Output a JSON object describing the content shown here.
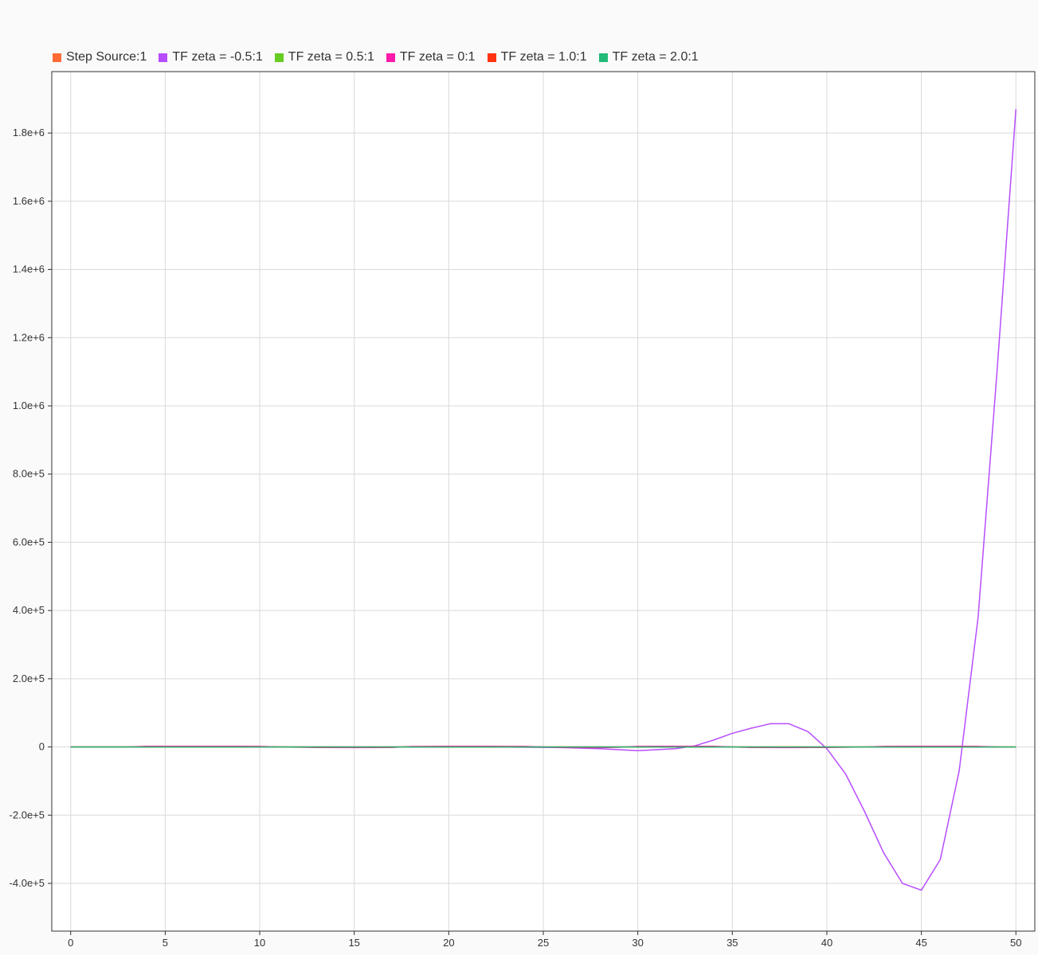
{
  "chart_data": {
    "type": "line",
    "xlim": [
      -1,
      51
    ],
    "ylim": [
      -540000,
      1980000
    ],
    "x_ticks": [
      0,
      5,
      10,
      15,
      20,
      25,
      30,
      35,
      40,
      45,
      50
    ],
    "x_tick_labels": [
      "0",
      "5",
      "10",
      "15",
      "20",
      "25",
      "30",
      "35",
      "40",
      "45",
      "50"
    ],
    "y_ticks": [
      -400000,
      -200000,
      0,
      200000,
      400000,
      600000,
      800000,
      1000000,
      1200000,
      1400000,
      1600000,
      1800000
    ],
    "y_tick_labels": [
      "-4.0e+5",
      "-2.0e+5",
      "0",
      "2.0e+5",
      "4.0e+5",
      "6.0e+5",
      "8.0e+5",
      "1.0e+6",
      "1.2e+6",
      "1.4e+6",
      "1.6e+6",
      "1.8e+6"
    ],
    "grid": true,
    "legend_position": "top-left",
    "series": [
      {
        "name": "Step Source:1",
        "color": "#ff6b35",
        "x": [
          0,
          1,
          50
        ],
        "y": [
          0,
          1,
          1
        ]
      },
      {
        "name": "TF zeta = -0.5:1",
        "color": "#b84dff",
        "x": [
          0,
          4,
          10,
          14,
          18,
          22,
          26,
          28,
          30,
          32,
          33,
          34,
          35,
          36,
          37,
          38,
          39,
          40,
          41,
          42,
          43,
          44,
          45,
          46,
          47,
          48,
          49,
          50
        ],
        "y": [
          0,
          0,
          0,
          0,
          0,
          0,
          -2000,
          -5000,
          -11000,
          -5000,
          3000,
          20000,
          40000,
          55000,
          68000,
          68000,
          45000,
          -5000,
          -80000,
          -190000,
          -310000,
          -400000,
          -420000,
          -330000,
          -70000,
          380000,
          1100000,
          1870000
        ]
      },
      {
        "name": "TF zeta = 0.5:1",
        "color": "#66cc22",
        "x": [
          0,
          5,
          10,
          20,
          30,
          40,
          50
        ],
        "y": [
          0,
          1,
          1,
          1,
          1,
          1,
          1
        ]
      },
      {
        "name": "TF zeta = 0:1",
        "color": "#ff1aaa",
        "x": [
          0,
          3,
          4,
          5,
          7,
          9,
          10,
          11,
          13,
          15,
          17,
          18,
          20,
          22,
          24,
          25,
          26,
          28,
          29,
          30,
          32,
          34,
          35,
          36,
          38,
          40,
          42,
          43,
          45,
          47,
          48,
          49,
          50
        ],
        "y": [
          0,
          0,
          1800,
          2000,
          2000,
          2000,
          1600,
          0,
          -1500,
          -2000,
          -1500,
          1200,
          2000,
          2000,
          1500,
          0,
          -1500,
          -2000,
          -1000,
          1500,
          2000,
          1800,
          0,
          -1500,
          -2000,
          -1500,
          0,
          1500,
          2000,
          2000,
          1500,
          0,
          -500
        ]
      },
      {
        "name": "TF zeta = 1.0:1",
        "color": "#ff3311",
        "x": [
          0,
          5,
          10,
          20,
          30,
          40,
          50
        ],
        "y": [
          0,
          1,
          1,
          1,
          1,
          1,
          1
        ]
      },
      {
        "name": "TF zeta = 2.0:1",
        "color": "#22bb77",
        "x": [
          0,
          5,
          10,
          20,
          30,
          40,
          50
        ],
        "y": [
          0,
          1,
          1,
          1,
          1,
          1,
          1
        ]
      }
    ]
  }
}
